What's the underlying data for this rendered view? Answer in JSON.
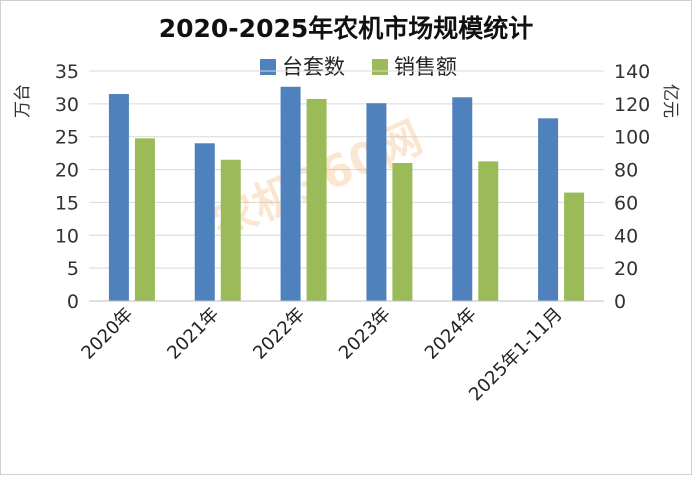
{
  "chart_data": {
    "type": "bar",
    "title": "2020-2025年农机市场规模统计",
    "categories": [
      "2020年",
      "2021年",
      "2022年",
      "2023年",
      "2024年",
      "2025年1-11月"
    ],
    "series": [
      {
        "name": "台套数",
        "axis": "left",
        "color": "#4f81bd",
        "values": [
          31.5,
          24.0,
          32.6,
          30.1,
          31.0,
          27.8
        ]
      },
      {
        "name": "销售额",
        "axis": "right",
        "color": "#9bbb59",
        "values": [
          99,
          86,
          123,
          84,
          85,
          66
        ]
      }
    ],
    "y_left": {
      "label": "万台",
      "ylim": [
        0,
        35
      ],
      "ticks": [
        0,
        5,
        10,
        15,
        20,
        25,
        30,
        35
      ]
    },
    "y_right": {
      "label": "亿元",
      "ylim": [
        0,
        140
      ],
      "ticks": [
        0,
        20,
        40,
        60,
        80,
        100,
        120,
        140
      ]
    },
    "grid": true,
    "legend_position": "top-center",
    "watermark": "农机360网"
  }
}
